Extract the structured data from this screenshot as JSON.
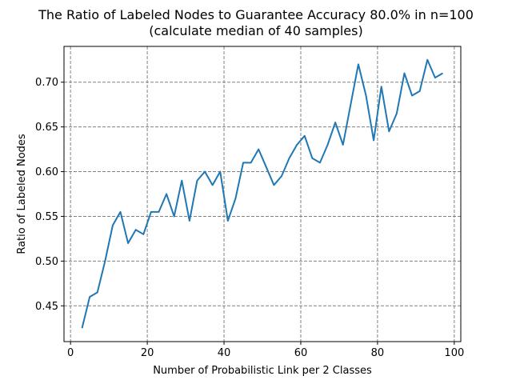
{
  "chart_data": {
    "type": "line",
    "title_line1": "The Ratio of Labeled Nodes to Guarantee Accuracy 80.0% in n=100",
    "title_line2": "(calculate median of 40 samples)",
    "xlabel": "Number of Probabilistic Link per 2 Classes",
    "ylabel": "Ratio of Labeled Nodes",
    "xlim": [
      -1.7,
      101.7
    ],
    "ylim": [
      0.41,
      0.74
    ],
    "xticks": [
      0,
      20,
      40,
      60,
      80,
      100
    ],
    "yticks": [
      0.45,
      0.5,
      0.55,
      0.6,
      0.65,
      0.7
    ],
    "xtick_labels": [
      "0",
      "20",
      "40",
      "60",
      "80",
      "100"
    ],
    "ytick_labels": [
      "0.45",
      "0.50",
      "0.55",
      "0.60",
      "0.65",
      "0.70"
    ],
    "grid": true,
    "series": [
      {
        "color": "#1f77b4",
        "x": [
          3,
          5,
          7,
          9,
          11,
          13,
          15,
          17,
          19,
          21,
          23,
          25,
          27,
          29,
          31,
          33,
          35,
          37,
          39,
          41,
          43,
          45,
          47,
          49,
          51,
          53,
          55,
          57,
          59,
          61,
          63,
          65,
          67,
          69,
          71,
          73,
          75,
          77,
          79,
          81,
          83,
          85,
          87,
          89,
          91,
          93,
          95,
          97
        ],
        "y": [
          0.425,
          0.46,
          0.465,
          0.5,
          0.54,
          0.555,
          0.52,
          0.535,
          0.53,
          0.555,
          0.555,
          0.575,
          0.55,
          0.59,
          0.545,
          0.59,
          0.6,
          0.585,
          0.6,
          0.545,
          0.57,
          0.61,
          0.61,
          0.625,
          0.605,
          0.585,
          0.595,
          0.615,
          0.63,
          0.64,
          0.615,
          0.61,
          0.63,
          0.655,
          0.63,
          0.675,
          0.72,
          0.685,
          0.635,
          0.695,
          0.645,
          0.665,
          0.71,
          0.685,
          0.69,
          0.725,
          0.705,
          0.71
        ]
      }
    ]
  }
}
